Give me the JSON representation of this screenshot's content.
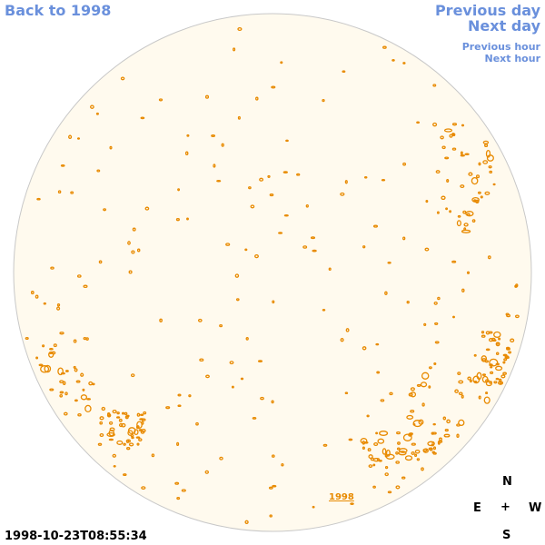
{
  "nav": {
    "back_label": "Back to 1998",
    "prev_day_label": "Previous day",
    "next_day_label": "Next day",
    "prev_hour_label": "Previous hour",
    "next_hour_label": "Next hour"
  },
  "map": {
    "year_label": "1998",
    "timestamp": "1998-10-23T08:55:34"
  },
  "compass": {
    "north": "N",
    "east": "E",
    "center": "+",
    "west": "W",
    "south": "S"
  },
  "colors": {
    "disk_fill": "#fffaee",
    "disk_edge": "#c8c8c8",
    "contour": "#e88a00",
    "link": "#6a90dc"
  }
}
